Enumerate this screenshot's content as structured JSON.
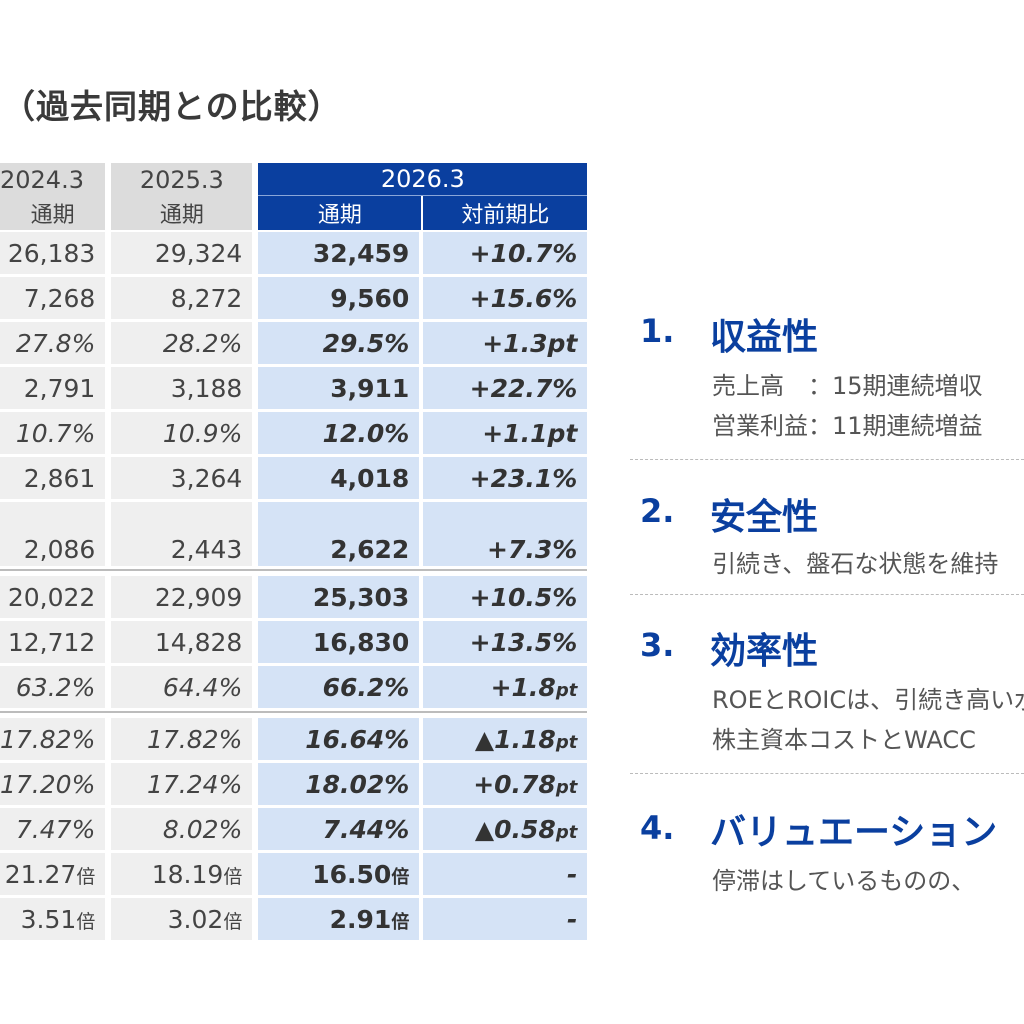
{
  "title": "（過去同期との比較）",
  "table": {
    "periods": [
      "2024.3",
      "2025.3",
      "2026.3"
    ],
    "sub": [
      "通期",
      "通期",
      "通期",
      "対前期比"
    ],
    "rows": [
      {
        "a": "26,183",
        "b": "29,324",
        "c": "32,459",
        "d": "+10.7%",
        "style": "n"
      },
      {
        "a": "7,268",
        "b": "8,272",
        "c": "9,560",
        "d": "+15.6%",
        "style": "n"
      },
      {
        "a": "27.8%",
        "b": "28.2%",
        "c": "29.5%",
        "d": "+1.3pt",
        "style": "i"
      },
      {
        "a": "2,791",
        "b": "3,188",
        "c": "3,911",
        "d": "+22.7%",
        "style": "n"
      },
      {
        "a": "10.7%",
        "b": "10.9%",
        "c": "12.0%",
        "d": "+1.1pt",
        "style": "i"
      },
      {
        "a": "2,861",
        "b": "3,264",
        "c": "4,018",
        "d": "+23.1%",
        "style": "n"
      },
      {
        "a": "2,086",
        "b": "2,443",
        "c": "2,622",
        "d": "+7.3%",
        "style": "t"
      },
      {
        "a": "20,022",
        "b": "22,909",
        "c": "25,303",
        "d": "+10.5%",
        "style": "n"
      },
      {
        "a": "12,712",
        "b": "14,828",
        "c": "16,830",
        "d": "+13.5%",
        "style": "n"
      },
      {
        "a": "63.2%",
        "b": "64.4%",
        "c": "66.2%",
        "d": "+1.8",
        "d_unit": "pt",
        "style": "i"
      },
      {
        "a": "17.82%",
        "b": "17.82%",
        "c": "16.64%",
        "d": "▲1.18",
        "d_unit": "pt",
        "style": "i"
      },
      {
        "a": "17.20%",
        "b": "17.24%",
        "c": "18.02%",
        "d": "+0.78",
        "d_unit": "pt",
        "style": "i"
      },
      {
        "a": "7.47%",
        "b": "8.02%",
        "c": "7.44%",
        "d": "▲0.58",
        "d_unit": "pt",
        "style": "i"
      },
      {
        "a": "21.27",
        "a_unit": "倍",
        "b": "18.19",
        "b_unit": "倍",
        "c": "16.50",
        "c_unit": "倍",
        "d": "-",
        "style": "n"
      },
      {
        "a": "3.51",
        "a_unit": "倍",
        "b": "3.02",
        "b_unit": "倍",
        "c": "2.91",
        "c_unit": "倍",
        "d": "-",
        "style": "n"
      }
    ]
  },
  "points": [
    {
      "num": "1.",
      "head": "収益性",
      "lines": [
        "売上高　：15期連続増収",
        "営業利益：11期連続増益"
      ]
    },
    {
      "num": "2.",
      "head": "安全性",
      "lines": [
        "引続き、盤石な状態を維持"
      ]
    },
    {
      "num": "3.",
      "head": "効率性",
      "lines": [
        "ROEとROICは、引続き高い水準",
        "株主資本コストとWACC"
      ]
    },
    {
      "num": "4.",
      "head": "バリュエーション",
      "lines": [
        "停滞はしているものの、"
      ]
    }
  ]
}
